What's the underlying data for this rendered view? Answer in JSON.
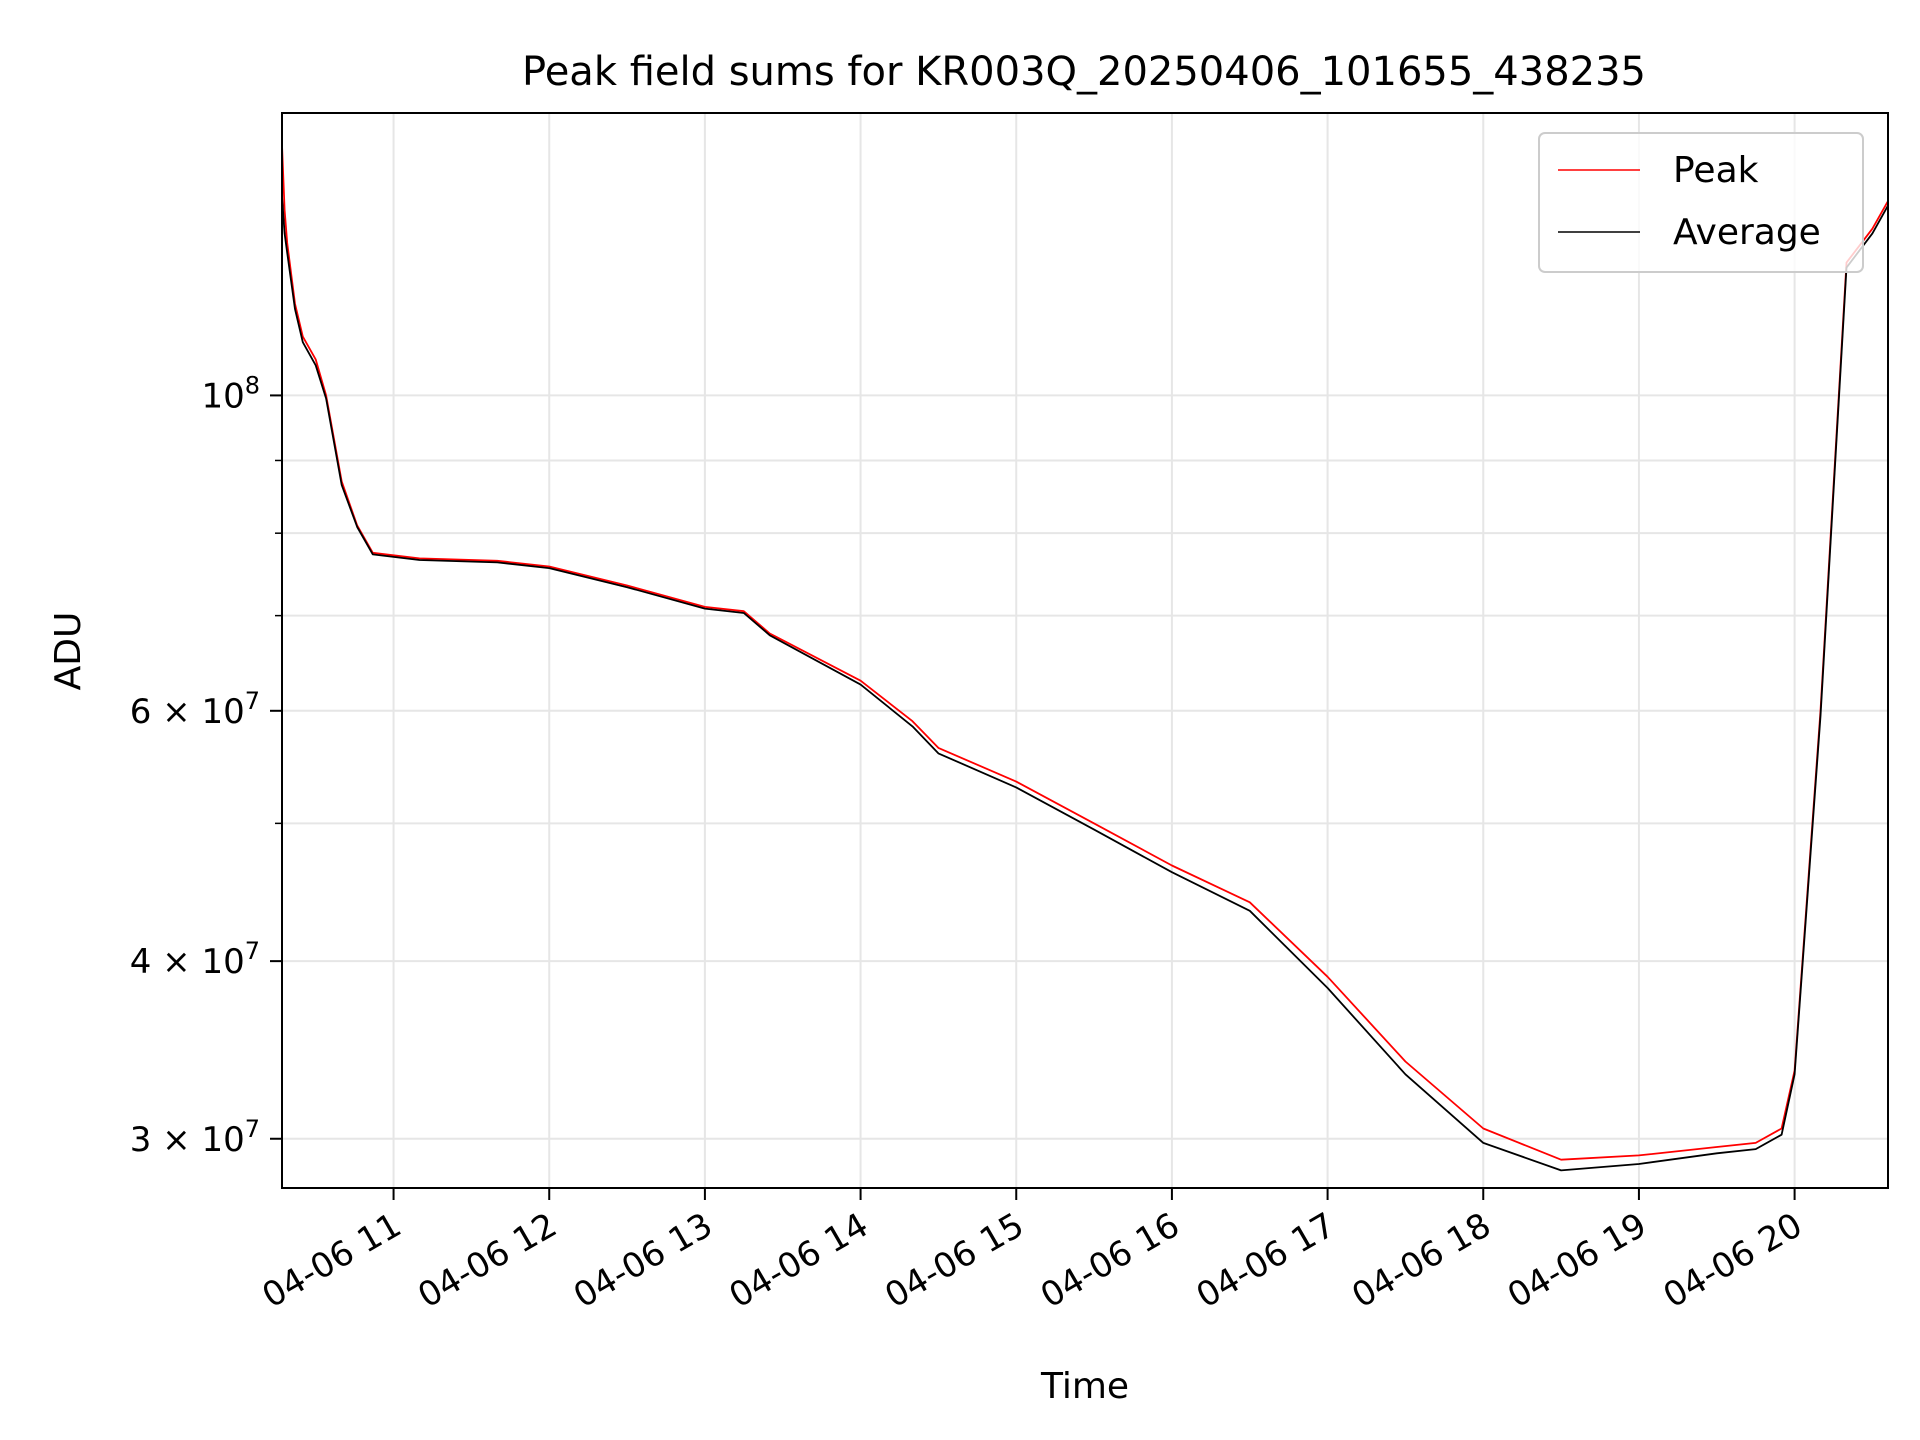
{
  "chart_data": {
    "type": "line",
    "title": "Peak field sums for KR003Q_20250406_101655_438235",
    "xlabel": "Time",
    "ylabel": "ADU",
    "y_scale": "log",
    "grid": true,
    "legend_position": "top-right",
    "x_tick_labels": [
      "04-06 11",
      "04-06 12",
      "04-06 13",
      "04-06 14",
      "04-06 15",
      "04-06 16",
      "04-06 17",
      "04-06 18",
      "04-06 19",
      "04-06 20"
    ],
    "x_ticks": [
      "2025-04-06 11:00",
      "2025-04-06 12:00",
      "2025-04-06 13:00",
      "2025-04-06 14:00",
      "2025-04-06 15:00",
      "2025-04-06 16:00",
      "2025-04-06 17:00",
      "2025-04-06 18:00",
      "2025-04-06 19:00",
      "2025-04-06 20:00"
    ],
    "xlim": [
      "2025-04-06 10:17",
      "2025-04-06 20:36"
    ],
    "ylim": [
      27700000,
      158000000
    ],
    "y_major_ticks": [
      {
        "value": 100000000,
        "base": "10",
        "exp": "8",
        "mant": ""
      },
      {
        "value": 60000000,
        "base": "10",
        "exp": "7",
        "mant": "6"
      },
      {
        "value": 40000000,
        "base": "10",
        "exp": "7",
        "mant": "4"
      },
      {
        "value": 30000000,
        "base": "10",
        "exp": "7",
        "mant": "3"
      }
    ],
    "y_minor_ticks": [
      90000000,
      80000000,
      70000000,
      50000000
    ],
    "series": [
      {
        "name": "Peak",
        "color": "#ff0000",
        "x": [
          "2025-04-06 10:17",
          "2025-04-06 10:18",
          "2025-04-06 10:19",
          "2025-04-06 10:22",
          "2025-04-06 10:25",
          "2025-04-06 10:30",
          "2025-04-06 10:34",
          "2025-04-06 10:40",
          "2025-04-06 10:46",
          "2025-04-06 10:52",
          "2025-04-06 11:10",
          "2025-04-06 11:40",
          "2025-04-06 12:00",
          "2025-04-06 12:30",
          "2025-04-06 13:00",
          "2025-04-06 13:15",
          "2025-04-06 13:25",
          "2025-04-06 14:00",
          "2025-04-06 14:20",
          "2025-04-06 14:30",
          "2025-04-06 15:00",
          "2025-04-06 15:30",
          "2025-04-06 16:00",
          "2025-04-06 16:30",
          "2025-04-06 17:00",
          "2025-04-06 17:30",
          "2025-04-06 18:00",
          "2025-04-06 18:30",
          "2025-04-06 19:00",
          "2025-04-06 19:30",
          "2025-04-06 19:45",
          "2025-04-06 19:55",
          "2025-04-06 20:00",
          "2025-04-06 20:10",
          "2025-04-06 20:20",
          "2025-04-06 20:30",
          "2025-04-06 20:36"
        ],
        "y": [
          150000000,
          135000000,
          128000000,
          116000000,
          110000000,
          106000000,
          100000000,
          87000000,
          81000000,
          77500000,
          76800000,
          76500000,
          75800000,
          73500000,
          71000000,
          70500000,
          68000000,
          63000000,
          59000000,
          56500000,
          53500000,
          50000000,
          46700000,
          44000000,
          39000000,
          34000000,
          30500000,
          29000000,
          29200000,
          29600000,
          29800000,
          30500000,
          33500000,
          60000000,
          124000000,
          131000000,
          137000000
        ]
      },
      {
        "name": "Average",
        "color": "#000000",
        "x": [
          "2025-04-06 10:17",
          "2025-04-06 10:18",
          "2025-04-06 10:19",
          "2025-04-06 10:22",
          "2025-04-06 10:25",
          "2025-04-06 10:30",
          "2025-04-06 10:34",
          "2025-04-06 10:40",
          "2025-04-06 10:46",
          "2025-04-06 10:52",
          "2025-04-06 11:10",
          "2025-04-06 11:40",
          "2025-04-06 12:00",
          "2025-04-06 12:30",
          "2025-04-06 13:00",
          "2025-04-06 13:15",
          "2025-04-06 13:25",
          "2025-04-06 14:00",
          "2025-04-06 14:20",
          "2025-04-06 14:30",
          "2025-04-06 15:00",
          "2025-04-06 15:30",
          "2025-04-06 16:00",
          "2025-04-06 16:30",
          "2025-04-06 17:00",
          "2025-04-06 17:30",
          "2025-04-06 18:00",
          "2025-04-06 18:30",
          "2025-04-06 19:00",
          "2025-04-06 19:30",
          "2025-04-06 19:45",
          "2025-04-06 19:55",
          "2025-04-06 20:00",
          "2025-04-06 20:10",
          "2025-04-06 20:20",
          "2025-04-06 20:30",
          "2025-04-06 20:36"
        ],
        "y": [
          138000000,
          130000000,
          126000000,
          115000000,
          109000000,
          105000000,
          99500000,
          86500000,
          80800000,
          77300000,
          76600000,
          76300000,
          75600000,
          73300000,
          70800000,
          70300000,
          67800000,
          62600000,
          58500000,
          56000000,
          53000000,
          49500000,
          46200000,
          43400000,
          38300000,
          33300000,
          29800000,
          28500000,
          28800000,
          29300000,
          29500000,
          30200000,
          33300000,
          59500000,
          123000000,
          130000000,
          136000000
        ]
      }
    ]
  }
}
